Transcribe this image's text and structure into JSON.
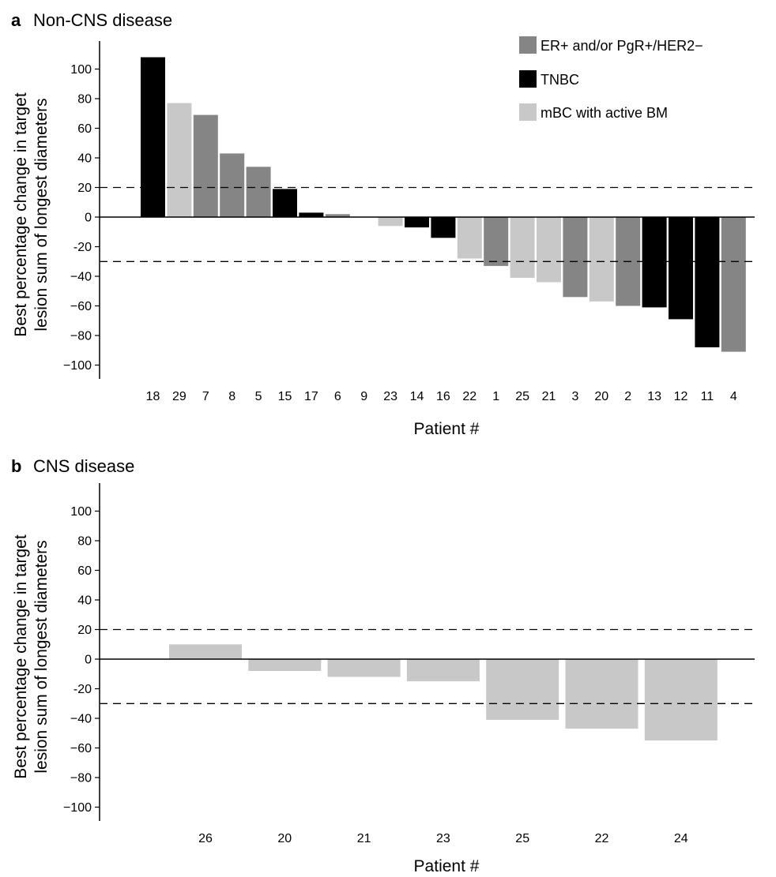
{
  "chart_data": [
    {
      "type": "bar",
      "panel_letter": "a",
      "title": "Non-CNS disease",
      "xlabel": "Patient #",
      "ylabel": [
        "Best percentage change in target",
        "lesion sum of longest diameters"
      ],
      "ylim": [
        -110,
        118
      ],
      "yticks": [
        100,
        80,
        60,
        40,
        20,
        0,
        -20,
        -40,
        -60,
        -80,
        -100
      ],
      "ytick_labels": [
        "100",
        "80",
        "60",
        "40",
        "20",
        "0",
        "-20",
        "−40",
        "−60",
        "−80",
        "−100"
      ],
      "reference_lines": [
        20,
        -30
      ],
      "categories": [
        "18",
        "29",
        "7",
        "8",
        "5",
        "15",
        "17",
        "6",
        "9",
        "23",
        "14",
        "16",
        "22",
        "1",
        "25",
        "21",
        "3",
        "20",
        "2",
        "13",
        "12",
        "11",
        "4"
      ],
      "values": [
        108,
        77,
        69,
        43,
        34,
        19,
        3,
        2,
        0,
        -6,
        -7,
        -14,
        -28,
        -33,
        -41,
        -44,
        -54,
        -57,
        -60,
        -61,
        -69,
        -88,
        -91
      ],
      "groups": [
        "TNBC",
        "mBC with active BM",
        "ER+ and/or PgR+/HER2−",
        "ER+ and/or PgR+/HER2−",
        "ER+ and/or PgR+/HER2−",
        "TNBC",
        "TNBC",
        "ER+ and/or PgR+/HER2−",
        "ER+ and/or PgR+/HER2−",
        "mBC with active BM",
        "TNBC",
        "TNBC",
        "mBC with active BM",
        "ER+ and/or PgR+/HER2−",
        "mBC with active BM",
        "mBC with active BM",
        "ER+ and/or PgR+/HER2−",
        "mBC with active BM",
        "ER+ and/or PgR+/HER2−",
        "TNBC",
        "TNBC",
        "TNBC",
        "ER+ and/or PgR+/HER2−"
      ],
      "legend": {
        "placement": "top-right",
        "entries": [
          {
            "label": "ER+ and/or PgR+/HER2−",
            "color": "#858585"
          },
          {
            "label": "TNBC",
            "color": "#000000"
          },
          {
            "label": "mBC with active BM",
            "color": "#c8c8c8"
          }
        ]
      }
    },
    {
      "type": "bar",
      "panel_letter": "b",
      "title": "CNS disease",
      "xlabel": "Patient #",
      "ylabel": [
        "Best percentage change in target",
        "lesion sum of longest diameters"
      ],
      "ylim": [
        -110,
        118
      ],
      "yticks": [
        100,
        80,
        60,
        40,
        20,
        0,
        -20,
        -40,
        -60,
        -80,
        -100
      ],
      "ytick_labels": [
        "100",
        "80",
        "60",
        "40",
        "20",
        "0",
        "-20",
        "−40",
        "−60",
        "−80",
        "−100"
      ],
      "reference_lines": [
        20,
        -30
      ],
      "categories": [
        "26",
        "20",
        "21",
        "23",
        "25",
        "22",
        "24"
      ],
      "values": [
        10,
        -8,
        -12,
        -15,
        -41,
        -47,
        -55
      ],
      "groups": [
        "mBC with active BM",
        "mBC with active BM",
        "mBC with active BM",
        "mBC with active BM",
        "mBC with active BM",
        "mBC with active BM",
        "mBC with active BM"
      ],
      "bar_color": "#c8c8c8"
    }
  ]
}
